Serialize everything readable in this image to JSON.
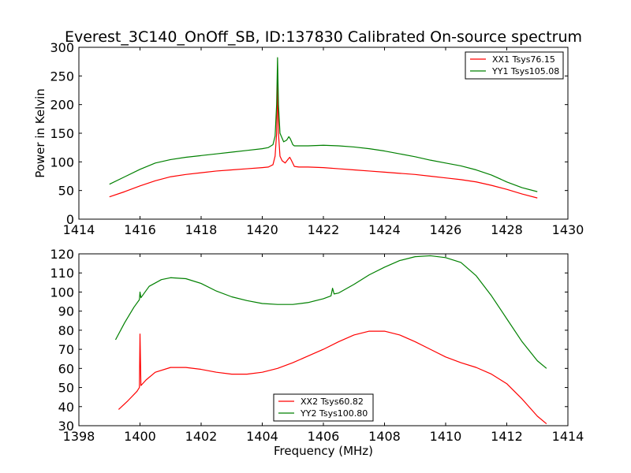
{
  "chart_data": [
    {
      "type": "line",
      "title": "Everest_3C140_OnOff_SB, ID:137830 Calibrated On-source spectrum",
      "xlabel": "",
      "ylabel": "Power in Kelvin",
      "xlim": [
        1414,
        1430
      ],
      "ylim": [
        0,
        300
      ],
      "xticks": [
        "1414",
        "1416",
        "1418",
        "1420",
        "1422",
        "1424",
        "1426",
        "1428",
        "1430"
      ],
      "yticks": [
        "0",
        "50",
        "100",
        "150",
        "200",
        "250",
        "300"
      ],
      "grid": false,
      "legend": "top-right",
      "series": [
        {
          "name": "XX1 Tsys76.15",
          "color": "#ff0000",
          "x": [
            1415.0,
            1415.5,
            1416.0,
            1416.5,
            1417.0,
            1417.5,
            1418.0,
            1418.5,
            1419.0,
            1419.5,
            1420.0,
            1420.2,
            1420.35,
            1420.42,
            1420.47,
            1420.5,
            1420.53,
            1420.58,
            1420.65,
            1420.75,
            1420.85,
            1420.9,
            1420.95,
            1421.05,
            1421.2,
            1421.5,
            1422.0,
            1422.5,
            1423.0,
            1423.5,
            1424.0,
            1424.5,
            1425.0,
            1425.5,
            1426.0,
            1426.5,
            1427.0,
            1427.5,
            1428.0,
            1428.5,
            1429.0
          ],
          "values": [
            39,
            48,
            58,
            67,
            74,
            78,
            81,
            84,
            86,
            88,
            90,
            91,
            95,
            110,
            150,
            240,
            150,
            110,
            102,
            98,
            105,
            108,
            103,
            92,
            91,
            91,
            90,
            88,
            86,
            84,
            82,
            80,
            78,
            75,
            72,
            69,
            65,
            59,
            52,
            44,
            37
          ]
        },
        {
          "name": "YY1 Tsys105.08",
          "color": "#008000",
          "x": [
            1415.0,
            1415.5,
            1416.0,
            1416.5,
            1417.0,
            1417.5,
            1418.0,
            1418.5,
            1419.0,
            1419.5,
            1420.0,
            1420.2,
            1420.35,
            1420.42,
            1420.47,
            1420.5,
            1420.53,
            1420.58,
            1420.62,
            1420.7,
            1420.8,
            1420.87,
            1420.92,
            1421.0,
            1421.05,
            1421.2,
            1421.5,
            1422.0,
            1422.5,
            1423.0,
            1423.5,
            1424.0,
            1424.5,
            1425.0,
            1425.5,
            1426.0,
            1426.5,
            1427.0,
            1427.5,
            1428.0,
            1428.5,
            1429.0
          ],
          "values": [
            61,
            74,
            87,
            98,
            104,
            108,
            111,
            114,
            117,
            120,
            123,
            125,
            130,
            145,
            200,
            282,
            200,
            150,
            145,
            135,
            138,
            144,
            140,
            130,
            128,
            128,
            128,
            129,
            128,
            126,
            123,
            119,
            114,
            109,
            103,
            98,
            93,
            86,
            77,
            65,
            55,
            48
          ]
        }
      ]
    },
    {
      "type": "line",
      "title": "",
      "xlabel": "Frequency (MHz)",
      "ylabel": "",
      "xlim": [
        1398,
        1414
      ],
      "ylim": [
        30,
        120
      ],
      "xticks": [
        "1398",
        "1400",
        "1402",
        "1404",
        "1406",
        "1408",
        "1410",
        "1412",
        "1414"
      ],
      "yticks": [
        "30",
        "40",
        "50",
        "60",
        "70",
        "80",
        "90",
        "100",
        "110",
        "120"
      ],
      "grid": false,
      "legend": "bottom-center",
      "series": [
        {
          "name": "XX2 Tsys60.82",
          "color": "#ff0000",
          "x": [
            1399.3,
            1399.6,
            1399.9,
            1399.98,
            1400.0,
            1400.03,
            1400.2,
            1400.5,
            1401.0,
            1401.5,
            1402.0,
            1402.5,
            1403.0,
            1403.5,
            1404.0,
            1404.5,
            1405.0,
            1405.5,
            1406.0,
            1406.5,
            1407.0,
            1407.5,
            1408.0,
            1408.5,
            1409.0,
            1409.5,
            1410.0,
            1410.5,
            1411.0,
            1411.5,
            1412.0,
            1412.5,
            1413.0,
            1413.3
          ],
          "values": [
            38.5,
            43,
            48,
            50,
            78,
            51,
            54,
            58,
            60.5,
            60.5,
            59.5,
            58,
            57,
            57,
            58,
            60,
            63,
            66.5,
            70,
            74,
            77.5,
            79.5,
            79.5,
            77.5,
            74,
            70,
            66,
            63,
            60.5,
            57,
            52,
            44,
            35,
            31
          ]
        },
        {
          "name": "YY2 Tsys100.80",
          "color": "#008000",
          "x": [
            1399.2,
            1399.5,
            1399.8,
            1399.98,
            1400.0,
            1400.03,
            1400.3,
            1400.7,
            1401.0,
            1401.5,
            1402.0,
            1402.5,
            1403.0,
            1403.5,
            1404.0,
            1404.5,
            1405.0,
            1405.5,
            1406.0,
            1406.25,
            1406.3,
            1406.35,
            1406.5,
            1407.0,
            1407.5,
            1408.0,
            1408.5,
            1409.0,
            1409.5,
            1410.0,
            1410.5,
            1411.0,
            1411.5,
            1412.0,
            1412.5,
            1413.0,
            1413.3
          ],
          "values": [
            75,
            84,
            92,
            96,
            100,
            97,
            103,
            106.5,
            107.5,
            107,
            104.5,
            100.5,
            97.5,
            95.5,
            94,
            93.5,
            93.5,
            94.5,
            96.5,
            98,
            102,
            99,
            99.5,
            104,
            109,
            113,
            116.5,
            118.5,
            119,
            118,
            115.5,
            108.5,
            98,
            86,
            74,
            64,
            60
          ]
        }
      ]
    }
  ]
}
